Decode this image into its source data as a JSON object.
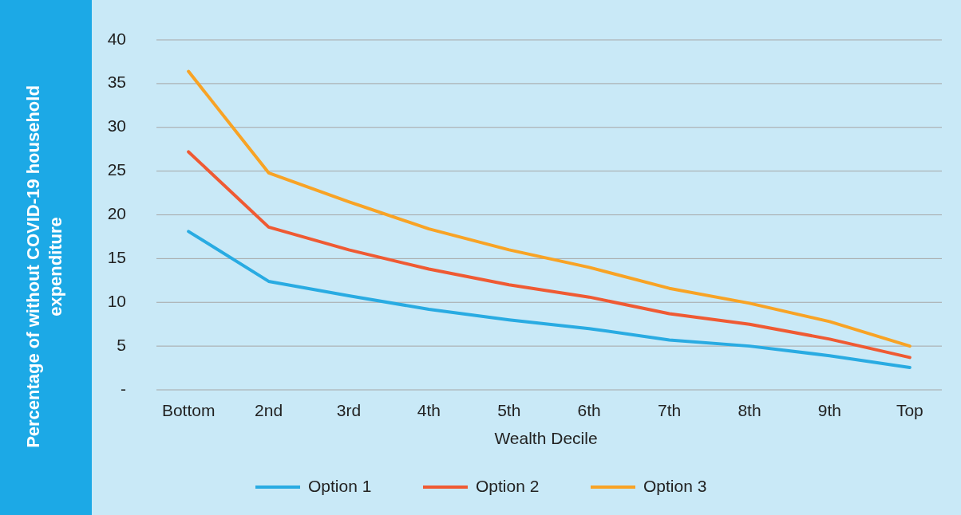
{
  "chart_data": {
    "type": "line",
    "xlabel": "Wealth Decile",
    "ylabel": "Percentage of without COVID-19 household expenditure",
    "categories": [
      "Bottom",
      "2nd",
      "3rd",
      "4th",
      "5th",
      "6th",
      "7th",
      "8th",
      "9th",
      "Top"
    ],
    "ylim": [
      0,
      40
    ],
    "yticks": [
      {
        "value": 0,
        "label": "-"
      },
      5,
      10,
      15,
      20,
      25,
      30,
      35,
      40
    ],
    "grid": "y",
    "legend": "bottom",
    "marker": "none",
    "line_style": "solid",
    "series": [
      {
        "name": "Option 1",
        "color": "#29abe2",
        "values": [
          18.1,
          12.4,
          10.75,
          9.2,
          8.0,
          7.0,
          5.7,
          5.0,
          3.9,
          2.55
        ]
      },
      {
        "name": "Option 2",
        "color": "#ef5a33",
        "values": [
          27.2,
          18.6,
          16.0,
          13.8,
          12.0,
          10.6,
          8.7,
          7.5,
          5.8,
          3.7
        ]
      },
      {
        "name": "Option 3",
        "color": "#f8a325",
        "values": [
          36.4,
          24.8,
          21.5,
          18.4,
          16.0,
          14.0,
          11.6,
          9.9,
          7.8,
          5.0
        ]
      }
    ]
  }
}
